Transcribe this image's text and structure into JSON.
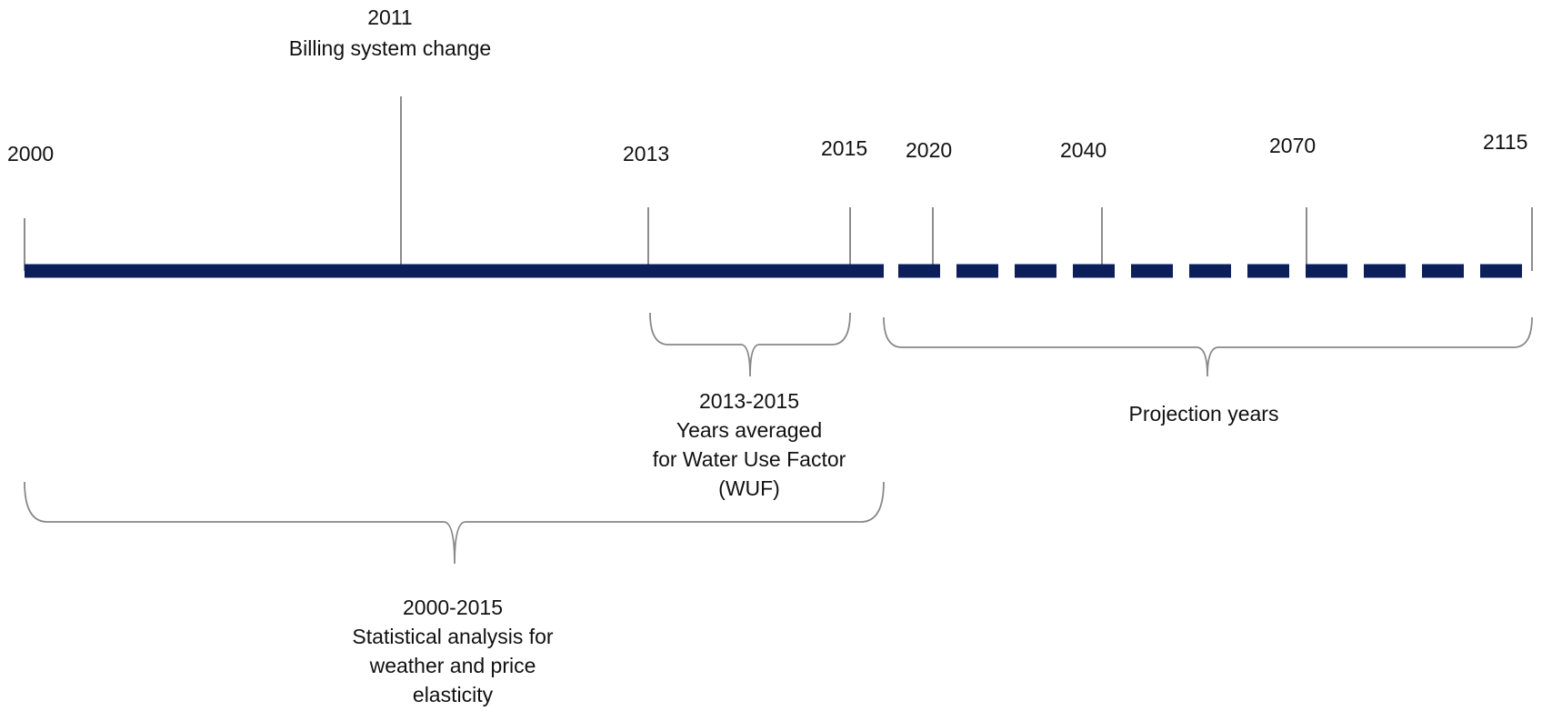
{
  "year_labels": {
    "y2000": "2000",
    "y2011": "2011",
    "y2013": "2013",
    "y2015": "2015",
    "y2020": "2020",
    "y2040": "2040",
    "y2070": "2070",
    "y2115": "2115"
  },
  "event_2011": {
    "label": "Billing system change"
  },
  "wuf_period": {
    "range": "2013-2015",
    "line1": "Years averaged",
    "line2": "for Water Use Factor",
    "line3": "(WUF)"
  },
  "projection_period": {
    "label": "Projection years"
  },
  "stat_period": {
    "range": "2000-2015",
    "line1": "Statistical analysis for",
    "line2": "weather and price",
    "line3": "elasticity"
  },
  "colors": {
    "timeline": "#0d1f5a",
    "ticks": "#555555",
    "braces": "#888888"
  }
}
